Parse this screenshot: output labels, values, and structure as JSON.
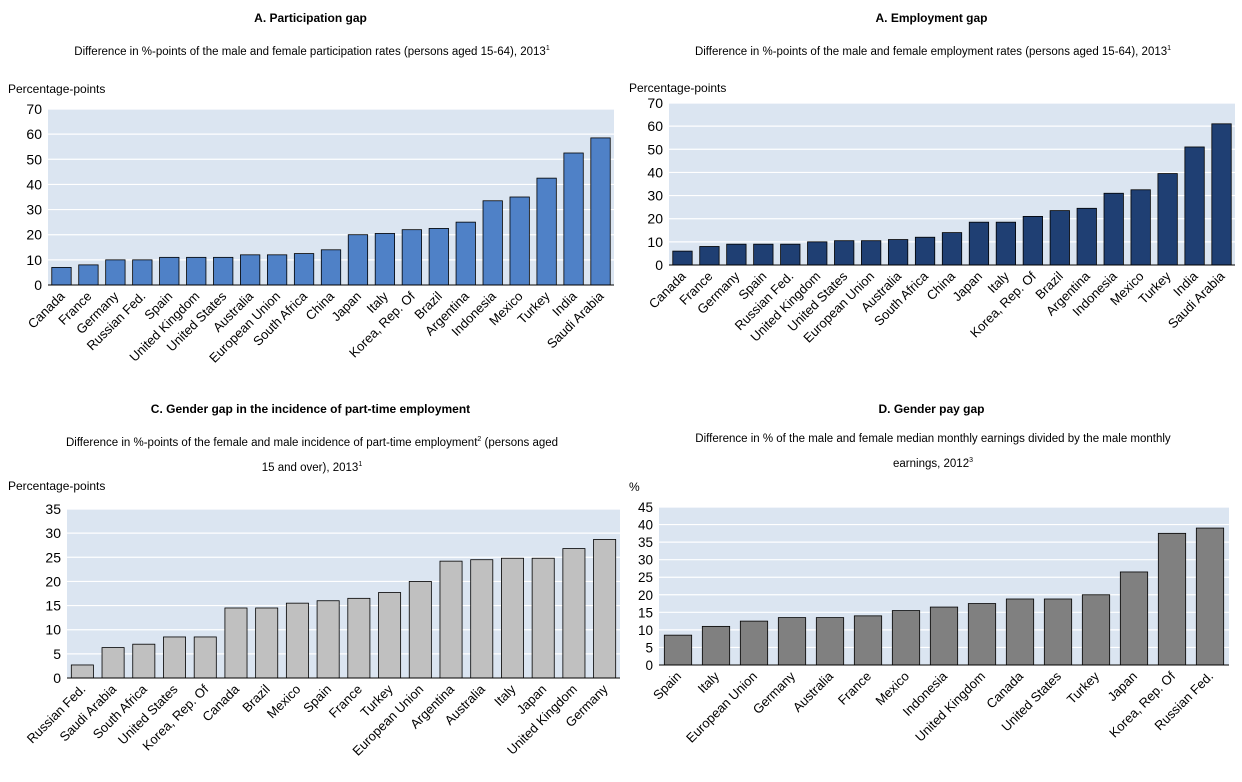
{
  "chart_data": [
    {
      "type": "bar",
      "title": "A. Participation gap",
      "subtitle": "Difference in %-points of the male and female participation rates (persons aged 15-64), 2013",
      "subtitle_note": "1",
      "ylabel": "Percentage-points",
      "ylim": [
        0,
        70
      ],
      "yticks": [
        0,
        10,
        20,
        30,
        40,
        50,
        60,
        70
      ],
      "color": "#4f81c7",
      "categories": [
        "Canada",
        "France",
        "Germany",
        "Russian Fed.",
        "Spain",
        "United Kingdom",
        "United States",
        "Australia",
        "European Union",
        "South Africa",
        "China",
        "Japan",
        "Italy",
        "Korea, Rep. Of",
        "Brazil",
        "Argentina",
        "Indonesia",
        "Mexico",
        "Turkey",
        "India",
        "Saudi Arabia"
      ],
      "values": [
        7,
        8,
        10,
        10,
        11,
        11,
        11,
        12,
        12,
        12.5,
        14,
        20,
        20.5,
        22,
        22.5,
        25,
        33.5,
        35,
        42.5,
        52.5,
        58.5
      ]
    },
    {
      "type": "bar",
      "title": "A. Employment gap",
      "subtitle": "Difference in %-points of the male and female employment rates (persons aged 15-64), 2013",
      "subtitle_note": "1",
      "ylabel": "Percentage-points",
      "ylim": [
        0,
        70
      ],
      "yticks": [
        0,
        10,
        20,
        30,
        40,
        50,
        60,
        70
      ],
      "color": "#1f3f73",
      "categories": [
        "Canada",
        "France",
        "Germany",
        "Spain",
        "Russian Fed.",
        "United Kingdom",
        "United States",
        "European Union",
        "Australia",
        "South Africa",
        "China",
        "Japan",
        "Italy",
        "Korea, Rep. Of",
        "Brazil",
        "Argentina",
        "Indonesia",
        "Mexico",
        "Turkey",
        "India",
        "Saudi Arabia"
      ],
      "values": [
        6,
        8,
        9,
        9,
        9,
        10,
        10.5,
        10.5,
        11,
        12,
        14,
        18.5,
        18.5,
        21,
        23.5,
        24.5,
        31,
        32.5,
        39.5,
        51,
        61
      ]
    },
    {
      "type": "bar",
      "title": "C. Gender gap in the incidence of part-time employment",
      "subtitle_line1": "Difference in %-points of the female and male incidence of part-time employment",
      "subtitle_note_a": "2",
      "subtitle_line1_end": " (persons aged",
      "subtitle_line2": "15 and over), 2013",
      "subtitle_note_b": "1",
      "ylabel": "Percentage-points",
      "ylim": [
        0,
        35
      ],
      "yticks": [
        0,
        5,
        10,
        15,
        20,
        25,
        30,
        35
      ],
      "color": "#c0c0c0",
      "categories": [
        "Russian Fed.",
        "Saudi Arabia",
        "South Africa",
        "United States",
        "Korea, Rep. Of",
        "Canada",
        "Brazil",
        "Mexico",
        "Spain",
        "France",
        "Turkey",
        "European Union",
        "Argentina",
        "Australia",
        "Italy",
        "Japan",
        "United Kingdom",
        "Germany"
      ],
      "values": [
        2.7,
        6.3,
        7,
        8.5,
        8.5,
        14.5,
        14.5,
        15.5,
        16,
        16.5,
        17.7,
        20,
        24.2,
        24.5,
        24.8,
        24.8,
        26.8,
        28.7
      ]
    },
    {
      "type": "bar",
      "title": "D. Gender pay gap",
      "subtitle_line1": "Difference in % of the male and female median monthly earnings divided by the male monthly",
      "subtitle_line2": "earnings, 2012",
      "subtitle_note_b": "3",
      "ylabel": "%",
      "ylim": [
        0,
        45
      ],
      "yticks": [
        0,
        5,
        10,
        15,
        20,
        25,
        30,
        35,
        40,
        45
      ],
      "color": "#808080",
      "categories": [
        "Spain",
        "Italy",
        "European Union",
        "Germany",
        "Australia",
        "France",
        "Mexico",
        "Indonesia",
        "United Kingdom",
        "Canada",
        "United States",
        "Turkey",
        "Japan",
        "Korea, Rep. Of",
        "Russian Fed."
      ],
      "values": [
        8.5,
        11,
        12.5,
        13.5,
        13.5,
        14,
        15.5,
        16.5,
        17.5,
        18.8,
        18.8,
        20,
        26.5,
        37.5,
        39
      ]
    }
  ]
}
